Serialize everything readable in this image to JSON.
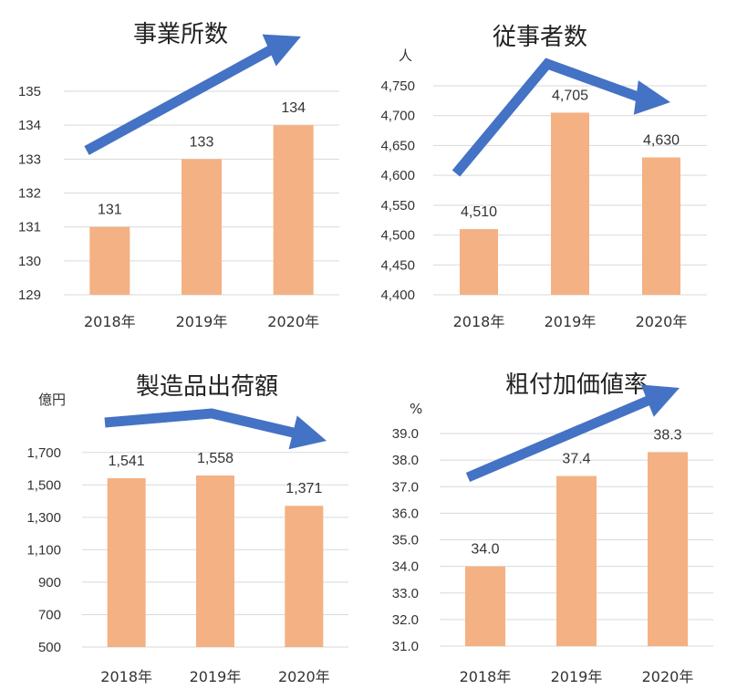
{
  "colors": {
    "bar": "#F4B183",
    "grid": "#D9D9D9",
    "arrow": "#4472C4",
    "text": "#333333"
  },
  "chart_data": [
    {
      "type": "bar",
      "title": "事業所数",
      "unit": "",
      "categories": [
        "2018年",
        "2019年",
        "2020年"
      ],
      "values": [
        131,
        133,
        134
      ],
      "value_labels": [
        "131",
        "133",
        "134"
      ],
      "ylim": [
        129,
        135
      ],
      "yticks": [
        129,
        130,
        131,
        132,
        133,
        134,
        135
      ],
      "ytick_labels": [
        "129",
        "130",
        "131",
        "132",
        "133",
        "134",
        "135"
      ],
      "grid": true,
      "trend_arrow": "rising"
    },
    {
      "type": "bar",
      "title": "従事者数",
      "unit": "人",
      "categories": [
        "2018年",
        "2019年",
        "2020年"
      ],
      "values": [
        4510,
        4705,
        4630
      ],
      "value_labels": [
        "4,510",
        "4,705",
        "4,630"
      ],
      "ylim": [
        4400,
        4750
      ],
      "yticks": [
        4400,
        4450,
        4500,
        4550,
        4600,
        4650,
        4700,
        4750
      ],
      "ytick_labels": [
        "4,400",
        "4,450",
        "4,500",
        "4,550",
        "4,600",
        "4,650",
        "4,700",
        "4,750"
      ],
      "grid": true,
      "trend_arrow": "rise-then-fall"
    },
    {
      "type": "bar",
      "title": "製造品出荷額",
      "unit": "億円",
      "categories": [
        "2018年",
        "2019年",
        "2020年"
      ],
      "values": [
        1541,
        1558,
        1371
      ],
      "value_labels": [
        "1,541",
        "1,558",
        "1,371"
      ],
      "ylim": [
        500,
        1800
      ],
      "yticks": [
        500,
        700,
        900,
        1100,
        1300,
        1500,
        1700
      ],
      "ytick_labels": [
        "500",
        "700",
        "900",
        "1,100",
        "1,300",
        "1,500",
        "1,700"
      ],
      "grid": true,
      "trend_arrow": "flat-then-fall"
    },
    {
      "type": "bar",
      "title": "粗付加価値率",
      "unit": "%",
      "categories": [
        "2018年",
        "2019年",
        "2020年"
      ],
      "values": [
        34.0,
        37.4,
        38.3
      ],
      "value_labels": [
        "34.0",
        "37.4",
        "38.3"
      ],
      "ylim": [
        31.0,
        39.0
      ],
      "yticks": [
        31,
        32,
        33,
        34,
        35,
        36,
        37,
        38,
        39
      ],
      "ytick_labels": [
        "31.0",
        "32.0",
        "33.0",
        "34.0",
        "35.0",
        "36.0",
        "37.0",
        "38.0",
        "39.0"
      ],
      "grid": true,
      "trend_arrow": "rising"
    }
  ]
}
